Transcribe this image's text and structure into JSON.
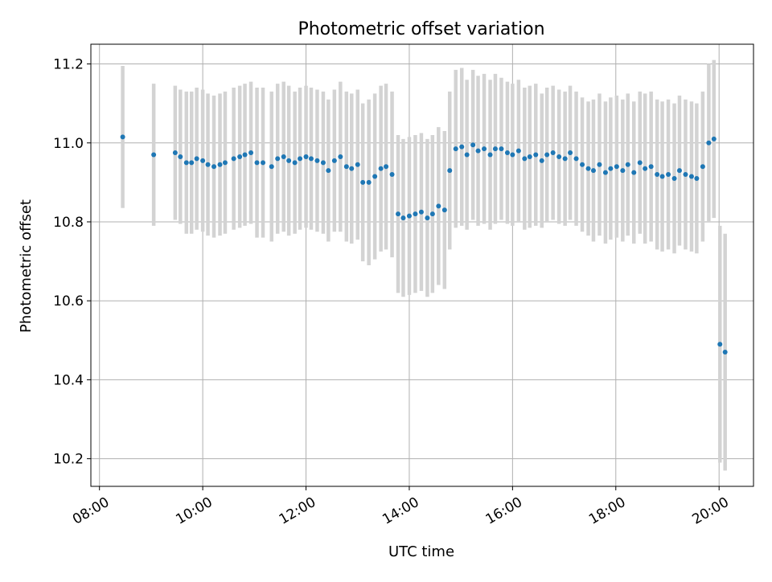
{
  "chart_data": {
    "type": "scatter",
    "title": "Photometric offset variation",
    "xlabel": "UTC time",
    "ylabel": "Photometric offset",
    "xlim": [
      "07:50",
      "20:40"
    ],
    "ylim": [
      10.13,
      11.25
    ],
    "x_ticks": [
      "08:00",
      "10:00",
      "12:00",
      "14:00",
      "16:00",
      "18:00",
      "20:00"
    ],
    "y_ticks": [
      "10.2",
      "10.4",
      "10.6",
      "10.8",
      "11.0",
      "11.2"
    ],
    "grid": true,
    "colors": {
      "points": "#1f77b4",
      "errorbars": "#d3d3d3",
      "grid": "#b0b0b0"
    },
    "x": [
      "08:27",
      "09:03",
      "09:28",
      "09:34",
      "09:41",
      "09:47",
      "09:53",
      "10:00",
      "10:06",
      "10:13",
      "10:20",
      "10:26",
      "10:36",
      "10:43",
      "10:49",
      "10:56",
      "11:03",
      "11:10",
      "11:20",
      "11:27",
      "11:34",
      "11:40",
      "11:47",
      "11:53",
      "12:00",
      "12:06",
      "12:13",
      "12:20",
      "12:26",
      "12:33",
      "12:40",
      "12:47",
      "12:53",
      "13:00",
      "13:06",
      "13:13",
      "13:20",
      "13:27",
      "13:33",
      "13:40",
      "13:47",
      "13:53",
      "14:00",
      "14:07",
      "14:14",
      "14:21",
      "14:27",
      "14:34",
      "14:41",
      "14:47",
      "14:54",
      "15:01",
      "15:07",
      "15:14",
      "15:20",
      "15:27",
      "15:34",
      "15:40",
      "15:47",
      "15:54",
      "16:00",
      "16:07",
      "16:14",
      "16:20",
      "16:27",
      "16:34",
      "16:40",
      "16:47",
      "16:54",
      "17:01",
      "17:07",
      "17:14",
      "17:21",
      "17:28",
      "17:34",
      "17:41",
      "17:48",
      "17:54",
      "18:01",
      "18:08",
      "18:14",
      "18:21",
      "18:28",
      "18:34",
      "18:41",
      "18:48",
      "18:54",
      "19:01",
      "19:08",
      "19:14",
      "19:21",
      "19:28",
      "19:34",
      "19:41",
      "19:48",
      "19:54",
      "20:01",
      "20:07"
    ],
    "y": [
      11.015,
      10.97,
      10.975,
      10.965,
      10.95,
      10.95,
      10.96,
      10.955,
      10.945,
      10.94,
      10.945,
      10.95,
      10.96,
      10.965,
      10.97,
      10.975,
      10.95,
      10.95,
      10.94,
      10.96,
      10.965,
      10.955,
      10.95,
      10.96,
      10.965,
      10.96,
      10.955,
      10.95,
      10.93,
      10.955,
      10.965,
      10.94,
      10.935,
      10.945,
      10.9,
      10.9,
      10.915,
      10.935,
      10.94,
      10.92,
      10.82,
      10.81,
      10.815,
      10.82,
      10.825,
      10.81,
      10.82,
      10.84,
      10.83,
      10.93,
      10.985,
      10.99,
      10.97,
      10.995,
      10.98,
      10.985,
      10.97,
      10.985,
      10.985,
      10.975,
      10.97,
      10.98,
      10.96,
      10.965,
      10.97,
      10.955,
      10.97,
      10.975,
      10.965,
      10.96,
      10.975,
      10.96,
      10.945,
      10.935,
      10.93,
      10.945,
      10.925,
      10.935,
      10.94,
      10.93,
      10.945,
      10.925,
      10.95,
      10.935,
      10.94,
      10.92,
      10.915,
      10.92,
      10.91,
      10.93,
      10.92,
      10.915,
      10.91,
      10.94,
      11.0,
      11.01,
      10.49,
      10.47
    ],
    "yerr": [
      0.18,
      0.18,
      0.17,
      0.17,
      0.18,
      0.18,
      0.18,
      0.18,
      0.18,
      0.18,
      0.18,
      0.18,
      0.18,
      0.18,
      0.18,
      0.18,
      0.19,
      0.19,
      0.19,
      0.19,
      0.19,
      0.19,
      0.18,
      0.18,
      0.18,
      0.18,
      0.18,
      0.18,
      0.18,
      0.18,
      0.19,
      0.19,
      0.19,
      0.19,
      0.2,
      0.21,
      0.21,
      0.21,
      0.21,
      0.21,
      0.2,
      0.2,
      0.2,
      0.2,
      0.2,
      0.2,
      0.2,
      0.2,
      0.2,
      0.2,
      0.2,
      0.2,
      0.19,
      0.19,
      0.19,
      0.19,
      0.19,
      0.19,
      0.18,
      0.18,
      0.18,
      0.18,
      0.18,
      0.18,
      0.18,
      0.17,
      0.17,
      0.17,
      0.17,
      0.17,
      0.17,
      0.17,
      0.17,
      0.17,
      0.18,
      0.18,
      0.18,
      0.18,
      0.18,
      0.18,
      0.18,
      0.18,
      0.18,
      0.19,
      0.19,
      0.19,
      0.19,
      0.19,
      0.19,
      0.19,
      0.19,
      0.19,
      0.19,
      0.19,
      0.2,
      0.2,
      0.3,
      0.3
    ]
  }
}
